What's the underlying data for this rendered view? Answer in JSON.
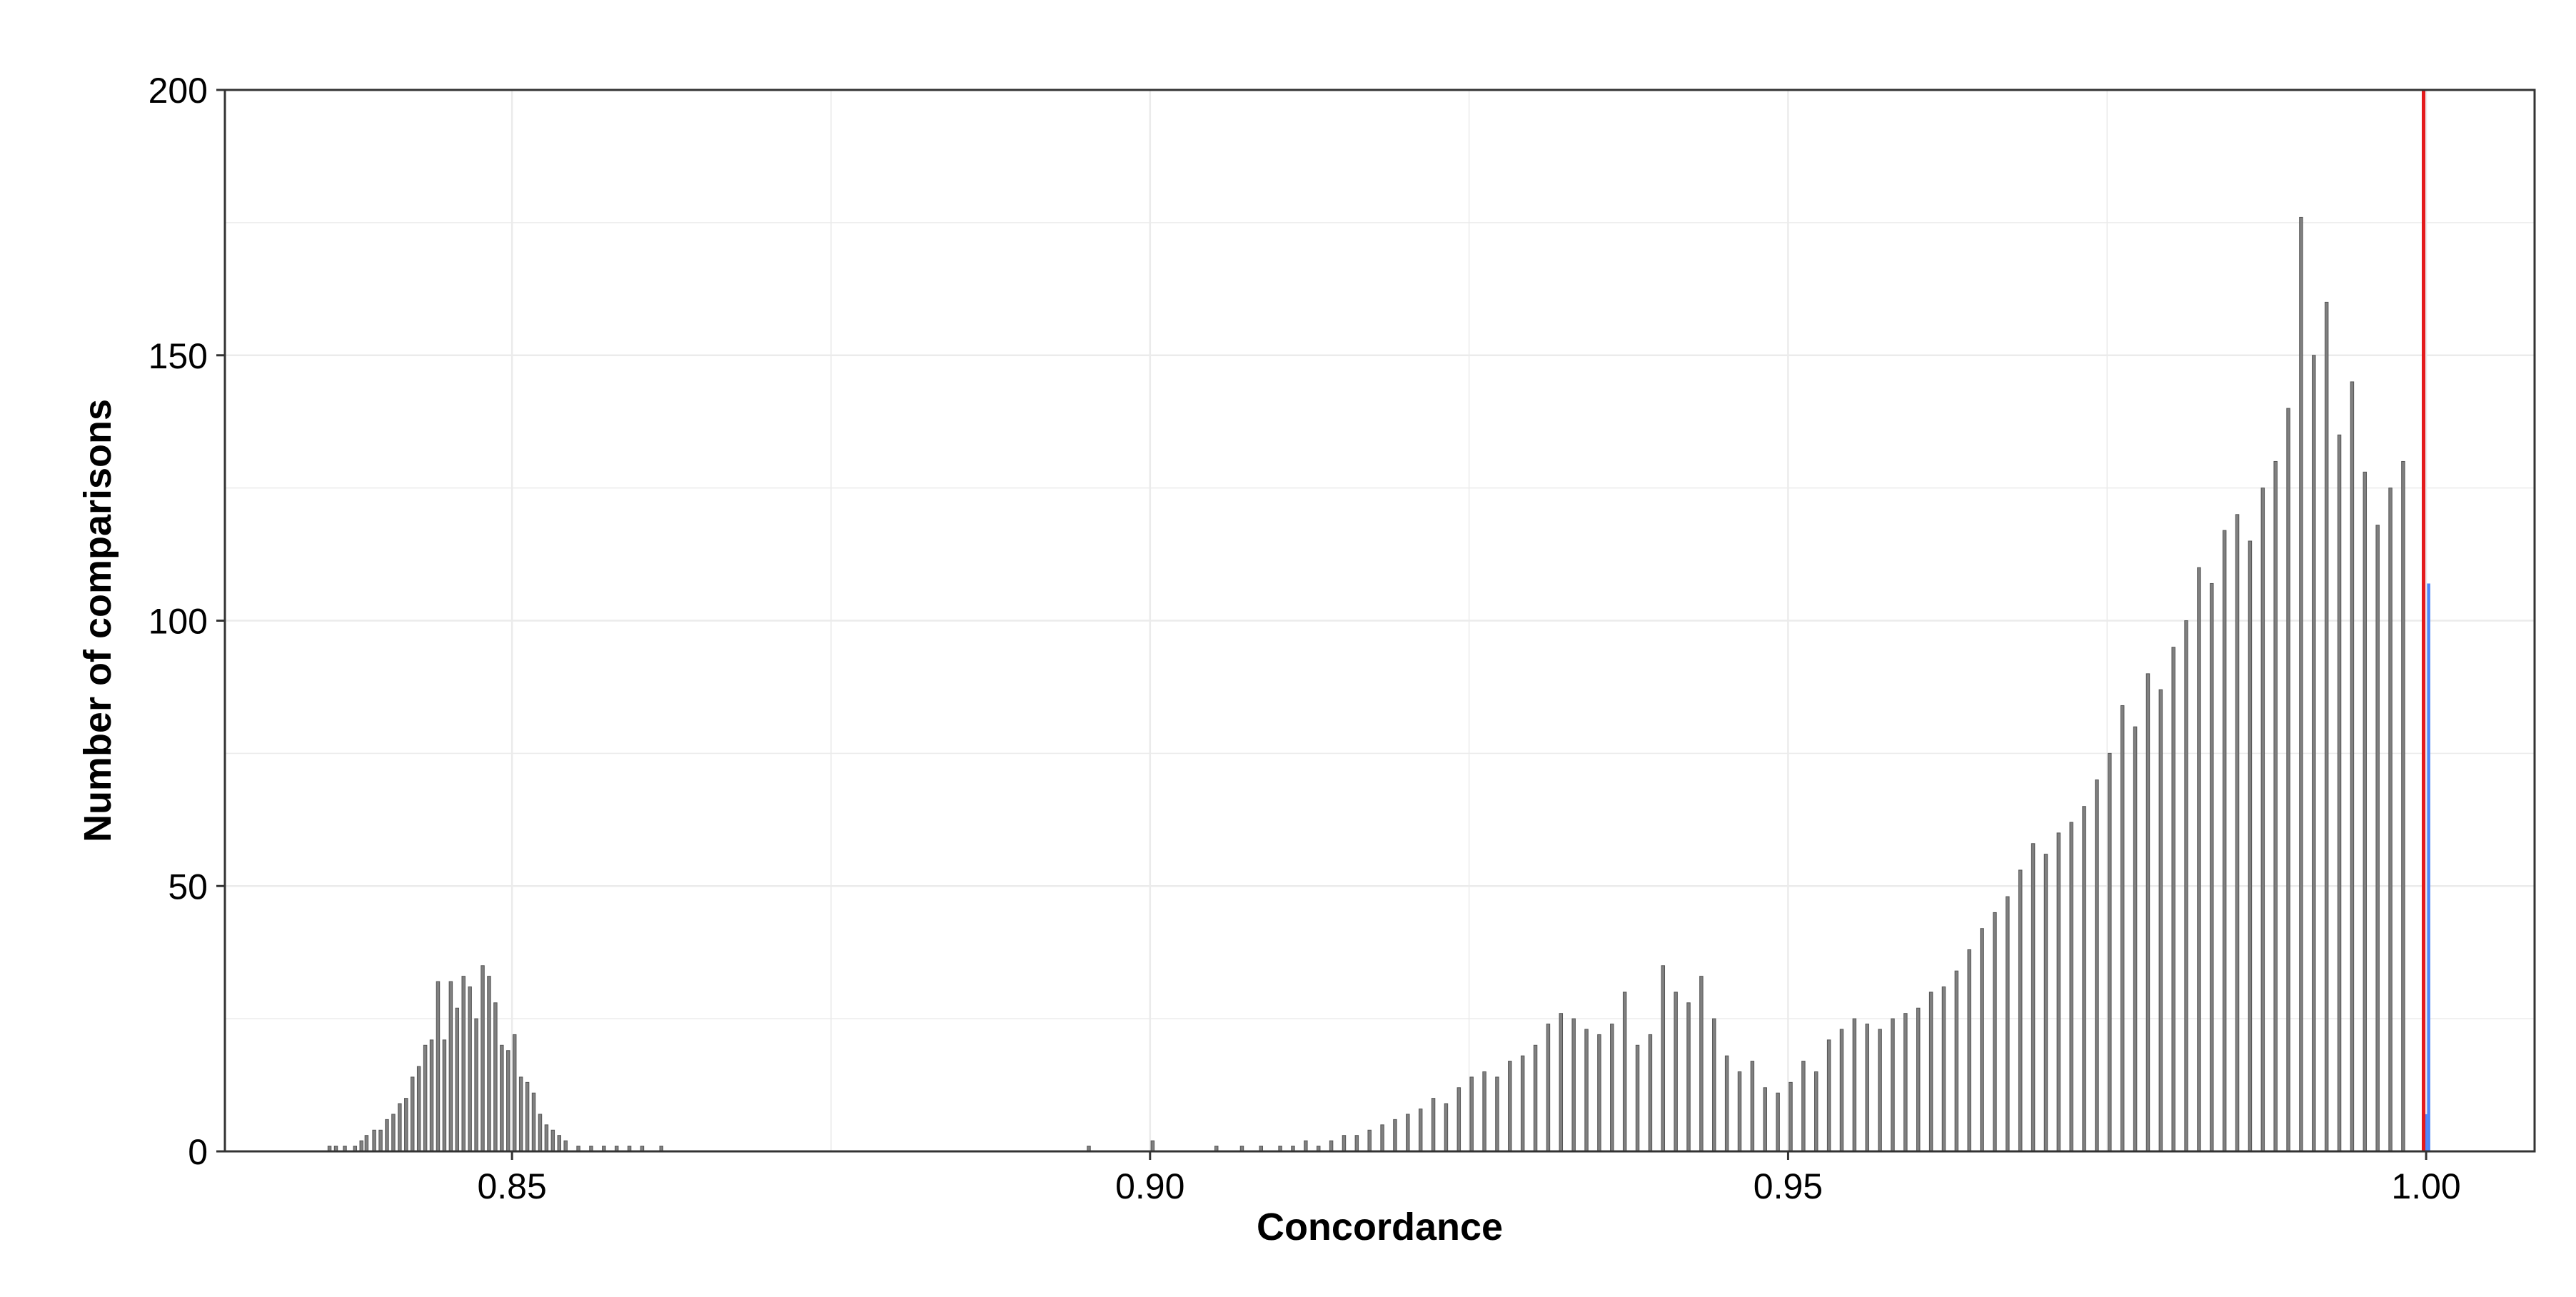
{
  "colors": {
    "background": "#ffffff",
    "panel_border": "#333333",
    "gridline": "#ebebeb",
    "bar_fill": "#808080",
    "bar_stroke": "#555555",
    "highlight_bar": "#4f86f7",
    "reference_line": "#e41a1c"
  },
  "chart_data": {
    "type": "bar",
    "subtype": "histogram",
    "xlabel": "Concordance",
    "ylabel": "Number of comparisons",
    "xlim": [
      0.8275,
      1.0085
    ],
    "ylim": [
      0,
      200
    ],
    "x_ticks": [
      0.85,
      0.9,
      0.95,
      1.0
    ],
    "x_tick_labels": [
      "0.85",
      "0.90",
      "0.95",
      "1.00"
    ],
    "y_ticks": [
      0,
      50,
      100,
      150,
      200
    ],
    "y_tick_labels": [
      "0",
      "50",
      "100",
      "150",
      "200"
    ],
    "grid": true,
    "legend": "none",
    "bin_width": 0.00025,
    "reference_line_x": 0.9998,
    "series": [
      {
        "values": [
          [
            0.8357,
            1
          ],
          [
            0.8362,
            1
          ],
          [
            0.8369,
            1
          ],
          [
            0.8377,
            1
          ],
          [
            0.8382,
            2
          ],
          [
            0.8386,
            3
          ],
          [
            0.8392,
            4
          ],
          [
            0.8397,
            4
          ],
          [
            0.8402,
            6
          ],
          [
            0.8407,
            7
          ],
          [
            0.8412,
            9
          ],
          [
            0.8417,
            10
          ],
          [
            0.8422,
            14
          ],
          [
            0.8427,
            16
          ],
          [
            0.8432,
            20
          ],
          [
            0.8437,
            21
          ],
          [
            0.8442,
            32
          ],
          [
            0.8447,
            21
          ],
          [
            0.8452,
            32
          ],
          [
            0.8457,
            27
          ],
          [
            0.8462,
            33
          ],
          [
            0.8467,
            31
          ],
          [
            0.8472,
            25
          ],
          [
            0.8477,
            35
          ],
          [
            0.8482,
            33
          ],
          [
            0.8487,
            28
          ],
          [
            0.8492,
            20
          ],
          [
            0.8497,
            19
          ],
          [
            0.8502,
            22
          ],
          [
            0.8507,
            14
          ],
          [
            0.8512,
            13
          ],
          [
            0.8517,
            11
          ],
          [
            0.8522,
            7
          ],
          [
            0.8527,
            5
          ],
          [
            0.8532,
            4
          ],
          [
            0.8537,
            3
          ],
          [
            0.8542,
            2
          ],
          [
            0.8552,
            1
          ],
          [
            0.8562,
            1
          ],
          [
            0.8572,
            1
          ],
          [
            0.8582,
            1
          ],
          [
            0.8592,
            1
          ],
          [
            0.8602,
            1
          ],
          [
            0.8617,
            1
          ],
          [
            0.8952,
            1
          ],
          [
            0.9002,
            2
          ],
          [
            0.9052,
            1
          ],
          [
            0.9072,
            1
          ],
          [
            0.9087,
            1
          ],
          [
            0.9102,
            1
          ],
          [
            0.9112,
            1
          ],
          [
            0.9122,
            2
          ],
          [
            0.9132,
            1
          ],
          [
            0.9142,
            2
          ],
          [
            0.9152,
            3
          ],
          [
            0.9162,
            3
          ],
          [
            0.9172,
            4
          ],
          [
            0.9182,
            5
          ],
          [
            0.9192,
            6
          ],
          [
            0.9202,
            7
          ],
          [
            0.9212,
            8
          ],
          [
            0.9222,
            10
          ],
          [
            0.9232,
            9
          ],
          [
            0.9242,
            12
          ],
          [
            0.9252,
            14
          ],
          [
            0.9262,
            15
          ],
          [
            0.9272,
            14
          ],
          [
            0.9282,
            17
          ],
          [
            0.9292,
            18
          ],
          [
            0.9302,
            20
          ],
          [
            0.9312,
            24
          ],
          [
            0.9322,
            26
          ],
          [
            0.9332,
            25
          ],
          [
            0.9342,
            23
          ],
          [
            0.9352,
            22
          ],
          [
            0.9362,
            24
          ],
          [
            0.9372,
            30
          ],
          [
            0.9382,
            20
          ],
          [
            0.9392,
            22
          ],
          [
            0.9402,
            35
          ],
          [
            0.9412,
            30
          ],
          [
            0.9422,
            28
          ],
          [
            0.9432,
            33
          ],
          [
            0.9442,
            25
          ],
          [
            0.9452,
            18
          ],
          [
            0.9462,
            15
          ],
          [
            0.9472,
            17
          ],
          [
            0.9482,
            12
          ],
          [
            0.9492,
            11
          ],
          [
            0.9502,
            13
          ],
          [
            0.9512,
            17
          ],
          [
            0.9522,
            15
          ],
          [
            0.9532,
            21
          ],
          [
            0.9542,
            23
          ],
          [
            0.9552,
            25
          ],
          [
            0.9562,
            24
          ],
          [
            0.9572,
            23
          ],
          [
            0.9582,
            25
          ],
          [
            0.9592,
            26
          ],
          [
            0.9602,
            27
          ],
          [
            0.9612,
            30
          ],
          [
            0.9622,
            31
          ],
          [
            0.9632,
            34
          ],
          [
            0.9642,
            38
          ],
          [
            0.9652,
            42
          ],
          [
            0.9662,
            45
          ],
          [
            0.9672,
            48
          ],
          [
            0.9682,
            53
          ],
          [
            0.9692,
            58
          ],
          [
            0.9702,
            56
          ],
          [
            0.9712,
            60
          ],
          [
            0.9722,
            62
          ],
          [
            0.9732,
            65
          ],
          [
            0.9742,
            70
          ],
          [
            0.9752,
            75
          ],
          [
            0.9762,
            84
          ],
          [
            0.9772,
            80
          ],
          [
            0.9782,
            90
          ],
          [
            0.9792,
            87
          ],
          [
            0.9802,
            95
          ],
          [
            0.9812,
            100
          ],
          [
            0.9822,
            110
          ],
          [
            0.9832,
            107
          ],
          [
            0.9842,
            117
          ],
          [
            0.9852,
            120
          ],
          [
            0.9862,
            115
          ],
          [
            0.9872,
            125
          ],
          [
            0.9882,
            130
          ],
          [
            0.9892,
            140
          ],
          [
            0.9902,
            176
          ],
          [
            0.9912,
            150
          ],
          [
            0.9922,
            160
          ],
          [
            0.9932,
            135
          ],
          [
            0.9942,
            145
          ],
          [
            0.9952,
            128
          ],
          [
            0.9962,
            118
          ],
          [
            0.9972,
            125
          ],
          [
            0.9982,
            130
          ]
        ]
      }
    ],
    "highlight_series": {
      "color": "#4f86f7",
      "values": [
        [
          0.99995,
          7
        ],
        [
          1.0002,
          107
        ]
      ]
    }
  }
}
